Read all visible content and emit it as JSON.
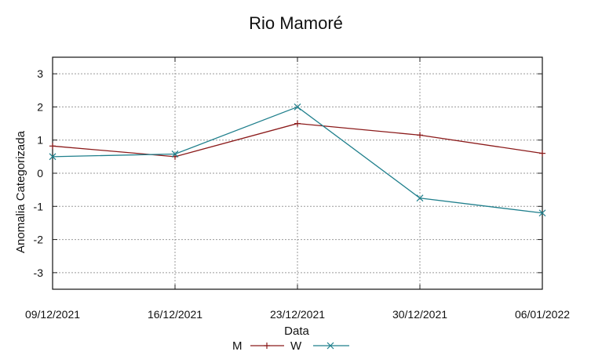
{
  "chart_data": {
    "type": "line",
    "title": "Rio Mamoré",
    "xlabel": "Data",
    "ylabel": "Anomalia Categorizada",
    "x": [
      "09/12/2021",
      "16/12/2021",
      "23/12/2021",
      "30/12/2021",
      "06/01/2022"
    ],
    "ylim": [
      -3.5,
      3.5
    ],
    "yticks": [
      "3",
      "2",
      "1",
      "0",
      "-1",
      "-2",
      "-3"
    ],
    "grid": true,
    "legend_position": "bottom",
    "series": [
      {
        "name": "M",
        "values": [
          0.82,
          0.5,
          1.5,
          1.15,
          0.6
        ],
        "color": "#8b1a1a",
        "marker": "plus"
      },
      {
        "name": "W",
        "values": [
          0.5,
          0.58,
          2.0,
          -0.75,
          -1.2
        ],
        "color": "#1f7f8c",
        "marker": "x"
      }
    ]
  }
}
